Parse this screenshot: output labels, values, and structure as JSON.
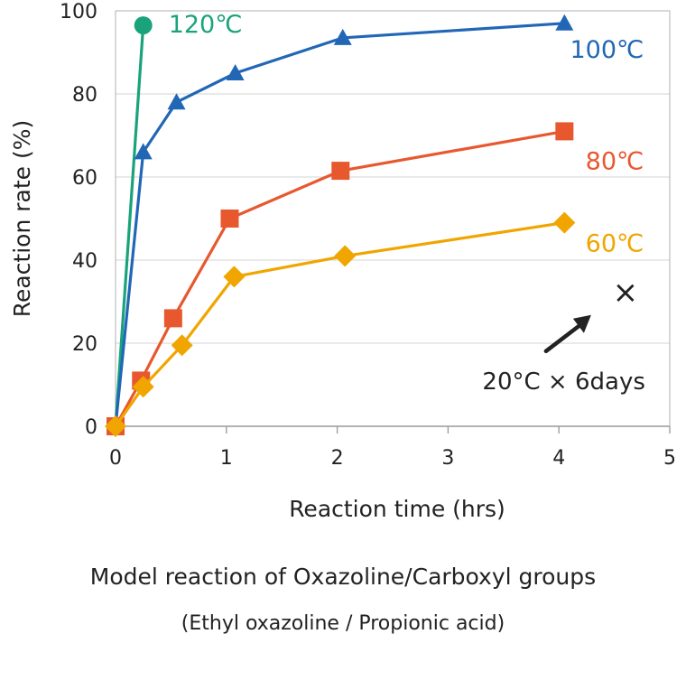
{
  "chart_data": {
    "type": "line",
    "xlabel": "Reaction time (hrs)",
    "ylabel": "Reaction rate (%)",
    "xlim": [
      0,
      5
    ],
    "ylim": [
      0,
      100
    ],
    "x_ticks": [
      0,
      1,
      2,
      3,
      4,
      5
    ],
    "y_ticks": [
      0,
      20,
      40,
      60,
      80,
      100
    ],
    "grid": "horizontal",
    "legend": "none (series labeled at line ends)",
    "series": [
      {
        "name": "120℃",
        "marker": "circle",
        "color": "#1aa37a",
        "x": [
          0,
          0.25
        ],
        "y": [
          0,
          96.5
        ]
      },
      {
        "name": "100℃",
        "marker": "triangle",
        "color": "#2167b5",
        "x": [
          0,
          0.25,
          0.55,
          1.08,
          2.05,
          4.05
        ],
        "y": [
          0,
          66,
          78,
          85,
          93.5,
          97
        ]
      },
      {
        "name": "80℃",
        "marker": "square",
        "color": "#e8582f",
        "x": [
          0,
          0.23,
          0.52,
          1.03,
          2.03,
          4.05
        ],
        "y": [
          0,
          11,
          26,
          50,
          61.5,
          71
        ]
      },
      {
        "name": "60℃",
        "marker": "diamond",
        "color": "#f0a500",
        "x": [
          0,
          0.25,
          0.6,
          1.07,
          2.07,
          4.05
        ],
        "y": [
          0,
          9.5,
          19.5,
          36,
          41,
          49
        ]
      }
    ],
    "annotation": {
      "text": "20°C × 6days",
      "marker": "×",
      "x": 4.6,
      "y": 32,
      "color": "#222222"
    }
  },
  "caption": {
    "title": "Model reaction of Oxazoline/Carboxyl groups",
    "subtitle": "(Ethyl oxazoline / Propionic acid)"
  }
}
